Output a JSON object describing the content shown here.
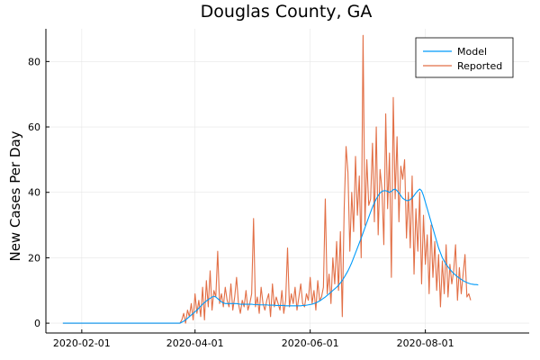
{
  "chart_data": {
    "type": "line",
    "title": "Douglas County, GA",
    "xlabel": "",
    "ylabel": "New Cases Per Day",
    "x_start": "2020-01-22",
    "x_ticks": [
      "2020-02-01",
      "2020-04-01",
      "2020-06-01",
      "2020-08-01"
    ],
    "y_ticks": [
      0,
      20,
      40,
      60,
      80
    ],
    "xlim": [
      "2020-01-13",
      "2020-09-25"
    ],
    "ylim": [
      -3,
      90
    ],
    "grid": true,
    "legend_position": "top-right",
    "series": [
      {
        "name": "Model",
        "color": "#009af9",
        "values": [
          0,
          0,
          0,
          0,
          0,
          0,
          0,
          0,
          0,
          0,
          0,
          0,
          0,
          0,
          0,
          0,
          0,
          0,
          0,
          0,
          0,
          0,
          0,
          0,
          0,
          0,
          0,
          0,
          0,
          0,
          0,
          0,
          0,
          0,
          0,
          0,
          0,
          0,
          0,
          0,
          0,
          0,
          0,
          0,
          0,
          0,
          0,
          0,
          0,
          0,
          0,
          0,
          0,
          0,
          0,
          0,
          0,
          0,
          0,
          0,
          0,
          0,
          0,
          0.3,
          0.6,
          1,
          1.5,
          2,
          2.5,
          3,
          3.5,
          4,
          4.6,
          5.2,
          5.8,
          6.3,
          6.8,
          7.2,
          7.6,
          8,
          8.2,
          8,
          7.5,
          7,
          6.5,
          6.2,
          6,
          6,
          6,
          6,
          6,
          6,
          6,
          5.9,
          5.8,
          5.8,
          5.8,
          5.8,
          5.8,
          5.8,
          5.8,
          5.7,
          5.7,
          5.7,
          5.6,
          5.6,
          5.6,
          5.6,
          5.6,
          5.5,
          5.5,
          5.5,
          5.5,
          5.4,
          5.4,
          5.4,
          5.4,
          5.4,
          5.3,
          5.3,
          5.3,
          5.3,
          5.3,
          5.3,
          5.3,
          5.3,
          5.3,
          5.4,
          5.4,
          5.5,
          5.6,
          5.7,
          5.8,
          6,
          6.2,
          6.5,
          6.8,
          7.2,
          7.6,
          8,
          8.5,
          9,
          9.5,
          10,
          10.5,
          11,
          11.6,
          12.3,
          13.1,
          14,
          15,
          16,
          17.2,
          18.5,
          20,
          21.5,
          23,
          24.5,
          26,
          27.6,
          29.2,
          30.8,
          32.4,
          34,
          35.5,
          36.8,
          38,
          39,
          39.8,
          40.3,
          40.5,
          40.5,
          40.3,
          40,
          40.3,
          40.8,
          41,
          40.5,
          39.8,
          39,
          38.2,
          37.8,
          37.5,
          37.5,
          37.8,
          38.3,
          39,
          39.8,
          40.5,
          41,
          40.5,
          39,
          37,
          35,
          33,
          31,
          29,
          27,
          25,
          23,
          21.5,
          20,
          19,
          18,
          17.2,
          16.5,
          15.8,
          15.2,
          14.7,
          14.2,
          13.8,
          13.4,
          13,
          12.7,
          12.4,
          12.2,
          12,
          11.9,
          11.8,
          11.8,
          11.7
        ]
      },
      {
        "name": "Reported",
        "color": "#e26f46",
        "values": [
          0,
          0,
          0,
          0,
          0,
          0,
          0,
          0,
          0,
          0,
          0,
          0,
          0,
          0,
          0,
          0,
          0,
          0,
          0,
          0,
          0,
          0,
          0,
          0,
          0,
          0,
          0,
          0,
          0,
          0,
          0,
          0,
          0,
          0,
          0,
          0,
          0,
          0,
          0,
          0,
          0,
          0,
          0,
          0,
          0,
          0,
          0,
          0,
          0,
          0,
          0,
          0,
          0,
          0,
          0,
          0,
          0,
          0,
          0,
          0,
          0,
          0,
          0,
          1,
          3,
          0,
          4,
          2,
          6,
          1,
          9,
          3,
          7,
          2,
          11,
          1,
          13,
          5,
          16,
          4,
          10,
          8,
          22,
          6,
          9,
          5,
          11,
          7,
          5,
          12,
          4,
          8,
          14,
          6,
          3,
          7,
          5,
          10,
          4,
          6,
          9,
          32,
          5,
          8,
          3,
          11,
          6,
          4,
          7,
          9,
          2,
          12,
          5,
          8,
          6,
          4,
          10,
          3,
          7,
          23,
          5,
          9,
          6,
          11,
          4,
          8,
          12,
          6,
          5,
          9,
          7,
          14,
          6,
          10,
          4,
          13,
          7,
          8,
          11,
          38,
          9,
          15,
          6,
          20,
          12,
          25,
          10,
          28,
          2,
          35,
          54,
          46,
          22,
          40,
          28,
          51,
          33,
          45,
          20,
          88,
          30,
          50,
          36,
          38,
          55,
          31,
          60,
          27,
          47,
          41,
          24,
          64,
          35,
          52,
          14,
          69,
          38,
          57,
          31,
          48,
          44,
          50,
          26,
          40,
          23,
          45,
          15,
          35,
          22,
          40,
          12,
          33,
          18,
          27,
          9,
          30,
          14,
          25,
          10,
          21,
          5,
          19,
          9,
          24,
          8,
          18,
          12,
          16,
          24,
          7,
          17,
          9,
          15,
          21,
          8,
          9,
          7
        ]
      }
    ]
  }
}
